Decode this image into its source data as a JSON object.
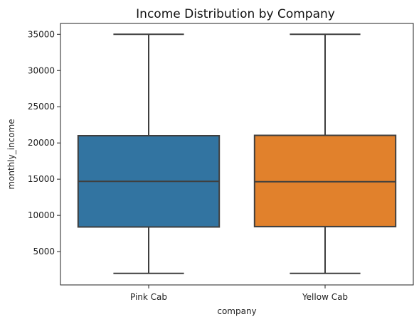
{
  "chart_data": {
    "type": "box",
    "title": "Income Distribution by Company",
    "xlabel": "company",
    "ylabel": "monthly_income",
    "categories": [
      "Pink Cab",
      "Yellow Cab"
    ],
    "ylim": [
      400,
      36500
    ],
    "yticks": [
      5000,
      10000,
      15000,
      20000,
      25000,
      30000,
      35000
    ],
    "grid": false,
    "boxes": [
      {
        "category": "Pink Cab",
        "whisker_low": 2000,
        "q1": 8400,
        "median": 14700,
        "q3": 21000,
        "whisker_high": 35000,
        "color": "#3274a1"
      },
      {
        "category": "Yellow Cab",
        "whisker_low": 2000,
        "q1": 8450,
        "median": 14650,
        "q3": 21050,
        "whisker_high": 35000,
        "color": "#e1812c"
      }
    ],
    "line_color": "#3f3f3f"
  }
}
